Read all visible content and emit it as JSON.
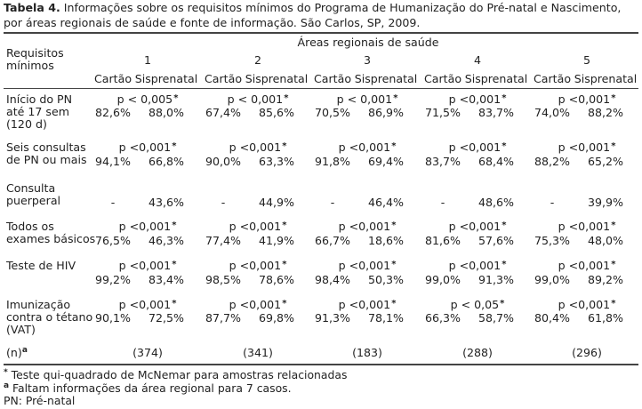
{
  "caption": {
    "label": "Tabela 4.",
    "text": " Informações sobre os requisitos mínimos do Programa de Humanização do Pré-natal e Nascimento, por áreas regionais de saúde e fonte de informação. São Carlos, SP, 2009."
  },
  "header": {
    "rowhead": [
      "Requisitos",
      "mínimos"
    ],
    "group": "Áreas regionais de saúde",
    "areas": [
      "1",
      "2",
      "3",
      "4",
      "5"
    ],
    "sub": [
      "Cartão",
      "Sisprenatal"
    ]
  },
  "rows": [
    {
      "label": [
        "Início do PN",
        "até 17 sem",
        "(120 d)"
      ],
      "p": [
        "p < 0,005",
        "p < 0,001",
        "p < 0,001",
        "p <0,001",
        "p <0,001"
      ],
      "vals": [
        [
          "82,6%",
          "88,0%"
        ],
        [
          "67,4%",
          "85,6%"
        ],
        [
          "70,5%",
          "86,9%"
        ],
        [
          "71,5%",
          "83,7%"
        ],
        [
          "74,0%",
          "88,2%"
        ]
      ]
    },
    {
      "label": [
        "Seis consultas",
        "de PN ou mais"
      ],
      "p": [
        "p <0,001",
        "p <0,001",
        "p <0,001",
        "p <0,001",
        "p <0,001"
      ],
      "vals": [
        [
          "94,1%",
          "66,8%"
        ],
        [
          "90,0%",
          "63,3%"
        ],
        [
          "91,8%",
          "69,4%"
        ],
        [
          "83,7%",
          "68,4%"
        ],
        [
          "88,2%",
          "65,2%"
        ]
      ]
    },
    {
      "label": [
        "Consulta",
        "puerperal"
      ],
      "p": [],
      "vals": [
        [
          "-",
          "43,6%"
        ],
        [
          "-",
          "44,9%"
        ],
        [
          "-",
          "46,4%"
        ],
        [
          "-",
          "48,6%"
        ],
        [
          "-",
          "39,9%"
        ]
      ]
    },
    {
      "label": [
        "Todos os",
        "exames básicos"
      ],
      "p": [
        "p <0,001",
        "p <0,001",
        "p <0,001",
        "p <0,001",
        "p <0,001"
      ],
      "vals": [
        [
          "76,5%",
          "46,3%"
        ],
        [
          "77,4%",
          "41,9%"
        ],
        [
          "66,7%",
          "18,6%"
        ],
        [
          "81,6%",
          "57,6%"
        ],
        [
          "75,3%",
          "48,0%"
        ]
      ]
    },
    {
      "label": [
        "Teste de HIV"
      ],
      "p": [
        "p <0,001",
        "p <0,001",
        "p <0,001",
        "p <0,001",
        "p <0,001"
      ],
      "vals": [
        [
          "99,2%",
          "83,4%"
        ],
        [
          "98,5%",
          "78,6%"
        ],
        [
          "98,4%",
          "50,3%"
        ],
        [
          "99,0%",
          "91,3%"
        ],
        [
          "99,0%",
          "89,2%"
        ]
      ]
    },
    {
      "label": [
        "Imunização",
        "contra o tétano",
        "(VAT)"
      ],
      "p": [
        "p <0,001",
        "p <0,001",
        "p <0,001",
        "p < 0,05",
        "p <0,001"
      ],
      "vals": [
        [
          "90,1%",
          "72,5%"
        ],
        [
          "87,7%",
          "69,8%"
        ],
        [
          "91,3%",
          "78,1%"
        ],
        [
          "66,3%",
          "58,7%"
        ],
        [
          "80,4%",
          "61,8%"
        ]
      ]
    }
  ],
  "n_row": {
    "label": "(n)",
    "label_sup": "a",
    "values": [
      "(374)",
      "(341)",
      "(183)",
      "(288)",
      "(296)"
    ]
  },
  "star": "*",
  "footnotes": {
    "star_mark": "*",
    "star_text": " Teste qui-quadrado de McNemar para amostras relacionadas",
    "a_mark": "a",
    "a_text": " Faltam informações da área regional para 7 casos.",
    "pn_text": "PN: Pré-natal"
  }
}
